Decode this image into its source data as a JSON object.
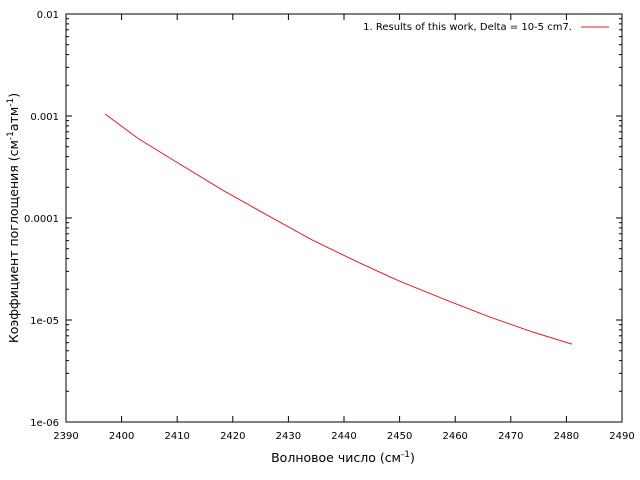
{
  "chart_data": {
    "type": "line",
    "xlabel": {
      "base": "Волновое число (см",
      "sup": "-1",
      "tail": ")"
    },
    "ylabel": {
      "pre": "Коэффициент поглощения (см",
      "sup1": "-1",
      "mid": "атм",
      "sup2": "-1",
      "tail": ")"
    },
    "xlim": [
      2390,
      2490
    ],
    "ylim": [
      1e-06,
      0.01
    ],
    "yscale": "log",
    "xticks": [
      2390,
      2400,
      2410,
      2420,
      2430,
      2440,
      2450,
      2460,
      2470,
      2480,
      2490
    ],
    "xtick_labels": [
      "2390",
      "2400",
      "2410",
      "2420",
      "2430",
      "2440",
      "2450",
      "2460",
      "2470",
      "2480",
      "2490"
    ],
    "yticks": [
      1e-06,
      1e-05,
      0.0001,
      0.001,
      0.01
    ],
    "ytick_labels": [
      "1e-06",
      "1e-05",
      "0.0001",
      "0.001",
      "0.01"
    ],
    "grid": false,
    "legend_position": "top-right",
    "series": [
      {
        "name": "1. Results of this work, Delta = 10-5 cm7.",
        "color": "#e41a1c",
        "x": [
          2397,
          2403,
          2410,
          2418,
          2426,
          2434,
          2442,
          2450,
          2458,
          2466,
          2474,
          2481
        ],
        "y": [
          0.00105,
          0.0006,
          0.00035,
          0.00019,
          0.000108,
          6.2e-05,
          3.8e-05,
          2.4e-05,
          1.6e-05,
          1.08e-05,
          7.6e-06,
          5.8e-06
        ]
      }
    ]
  }
}
